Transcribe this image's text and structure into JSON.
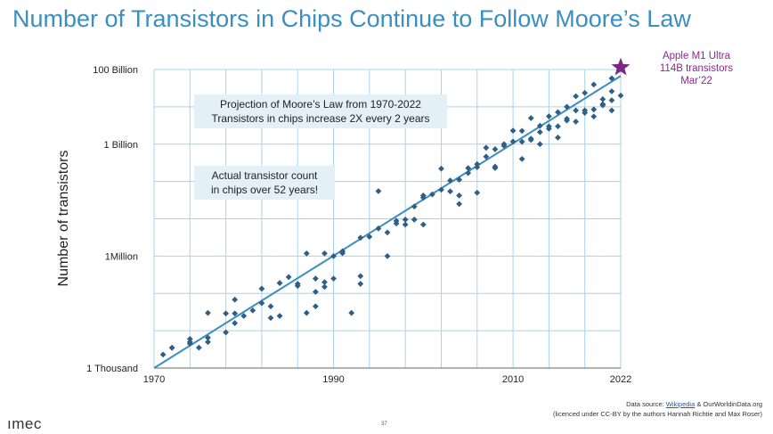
{
  "slide": {
    "title": "Number of Transistors in Chips Continue to Follow Moore’s Law",
    "page_number": "37",
    "logo_text": "ımec",
    "source_prefix": "Data source: ",
    "source_link": "Wikipedia",
    "source_suffix": " & OurWorldinData.org",
    "source_line2": "(licenced under CC-BY by the authors Hannah Richtie and Max Roser)",
    "annotation_1_line1": "Projection of Moore’s Law from 1970-2022",
    "annotation_1_line2": "Transistors in chips increase 2X every 2 years",
    "annotation_2_line1": "Actual transistor count",
    "annotation_2_line2": "in chips over 52 years!",
    "highlight_line1": "Apple M1 Ultra",
    "highlight_line2": "114B transistors",
    "highlight_line3": "Mar’22",
    "highlight_color": "#7a2a86",
    "accent_color": "#3a8fc0",
    "marker_color": "#2f5f86"
  },
  "chart_data": {
    "type": "scatter",
    "ylabel": "Number of transistors",
    "y_scale": "log",
    "ylim": [
      1000,
      100000000000
    ],
    "xlim": [
      1970,
      2022
    ],
    "x_ticks": [
      1970,
      1990,
      2010,
      2022
    ],
    "x_tick_labels": [
      "1970",
      "1990",
      "2010",
      "2022"
    ],
    "y_ticks": [
      1000,
      1000000,
      1000000000,
      100000000000
    ],
    "y_tick_labels": [
      "1 Thousand",
      "1Million",
      "1 Billion",
      "100 Billion"
    ],
    "grid": true,
    "trend_line": {
      "name": "Projection of Moore’s Law",
      "x": [
        1970,
        2022
      ],
      "y": [
        1000,
        67108864000
      ]
    },
    "highlight": {
      "x": 2022,
      "y": 114000000000
    },
    "x": [
      1971,
      1972,
      1972,
      1974,
      1974,
      1974,
      1975,
      1976,
      1976,
      1978,
      1978,
      1979,
      1979,
      1980,
      1982,
      1982,
      1983,
      1984,
      1984,
      1985,
      1986,
      1987,
      1987,
      1988,
      1989,
      1989,
      1990,
      1991,
      1991,
      1993,
      1993,
      1994,
      1995,
      1996,
      1997,
      1997,
      1998,
      1998,
      1999,
      1999,
      2000,
      2000,
      2001,
      2002,
      2003,
      2003,
      2004,
      2004,
      2005,
      2005,
      2006,
      2006,
      2007,
      2007,
      2008,
      2008,
      2009,
      2009,
      2010,
      2010,
      2011,
      2011,
      2012,
      2012,
      2013,
      2013,
      2014,
      2014,
      2015,
      2015,
      2016,
      2016,
      2017,
      2017,
      2018,
      2018,
      2019,
      2019,
      2020,
      2020,
      2021,
      2021,
      2022,
      2022,
      2008,
      1993,
      1995,
      2002,
      2012,
      2014,
      2016,
      2018,
      2020,
      2021,
      1976,
      1979,
      1981,
      1983,
      1986,
      1988,
      1988,
      1989,
      1990,
      1992,
      1996,
      2000,
      2004,
      2006,
      2011,
      2013,
      2015,
      2017,
      2019,
      2021
    ],
    "y": [
      2300,
      3500,
      3500,
      4500,
      6000,
      5000,
      3510,
      6500,
      5000,
      29000,
      9000,
      29000,
      68000,
      25000,
      134000,
      55000,
      22000,
      190000,
      25000,
      275000,
      180000,
      30000,
      1180235,
      250000,
      1180235,
      200000,
      1000000,
      1200000,
      1350000,
      3100000,
      290000,
      3300000,
      5500000,
      4300000,
      7500000,
      8800000,
      9500000,
      7000000,
      21300000,
      9500000,
      37000000,
      42000000,
      45000000,
      220000000,
      54300000,
      105900000,
      112000000,
      42000000,
      169000000,
      228000000,
      291000000,
      241000000,
      463000000,
      800000000,
      731000000,
      230000000,
      904000000,
      1000000000,
      1170000000,
      2300000000,
      2270000000,
      1160000000,
      1400000000,
      5000000000,
      2100000000,
      3100000000,
      2600000000,
      5560000000,
      3000000000,
      7200000000,
      4800000000,
      10000000000,
      8000000000,
      19200000000,
      6900000000,
      23600000000,
      8500000000,
      39540000000,
      11800000000,
      16000000000,
      15000000000,
      58200000000,
      20000000000,
      114000000000,
      250000000,
      180000,
      55000000,
      60000000,
      1300000000,
      3000000000,
      4300000000,
      8000000000,
      11000000000,
      26000000000,
      30000,
      16000,
      35000,
      45000,
      160000,
      110000,
      45000,
      150000,
      250000,
      30000,
      1000000,
      7000000,
      25000000,
      50000000,
      400000000,
      1000000000,
      1500000000,
      4000000000,
      5500000000,
      8000000000
    ]
  }
}
